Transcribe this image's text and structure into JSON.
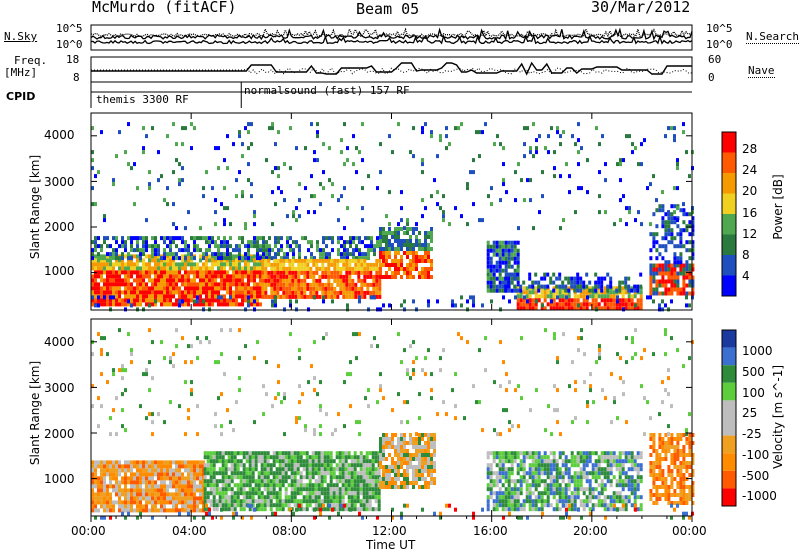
{
  "header": {
    "station": "McMurdo (fitACF)",
    "beam": "Beam 05",
    "date": "30/Mar/2012"
  },
  "noise_panel": {
    "left_label": "N.Sky",
    "right_label": "N.Search",
    "tick_top": "10^5",
    "tick_bottom": "10^0",
    "right_tick_top": "10^5",
    "right_tick_bottom": "10^0"
  },
  "freq_panel": {
    "left_label_line1": "Freq.",
    "left_label_line2": "[MHz]",
    "left_tick_top": "18",
    "left_tick_bottom": "8",
    "right_label": "Nave",
    "right_tick_top": "60",
    "right_tick_bottom": "0"
  },
  "cpid": {
    "label": "CPID",
    "modes": [
      {
        "name": "themis 3300 RF",
        "start_hour": 0
      },
      {
        "name": "normalsound (fast) 157 RF",
        "start_hour": 6
      }
    ]
  },
  "colors": {
    "power": [
      "#0000ff",
      "#1f4fbf",
      "#2a7a40",
      "#4fa84f",
      "#f0d020",
      "#f59a00",
      "#ff5a00",
      "#ff0000"
    ],
    "velocity": [
      "#ff0000",
      "#ff5a00",
      "#ff8c00",
      "#f0a020",
      "#bdbdbd",
      "#bdbdbd",
      "#5ccd3c",
      "#2e8b3a",
      "#3b6fd0",
      "#1a3aa0"
    ]
  },
  "chart_data": [
    {
      "type": "heatmap",
      "name": "power",
      "ylabel": "Slant Range [km]",
      "xlabel": "",
      "xlim": [
        0,
        24
      ],
      "ylim": [
        180,
        4500
      ],
      "yticks": [
        "1000",
        "2000",
        "3000",
        "4000"
      ],
      "colorbar": {
        "label": "Power [dB]",
        "ticks": [
          "4",
          "8",
          "12",
          "16",
          "20",
          "24",
          "28"
        ],
        "range": [
          0,
          32
        ]
      }
    },
    {
      "type": "heatmap",
      "name": "velocity",
      "ylabel": "Slant Range [km]",
      "xlabel": "Time UT",
      "xlim": [
        0,
        24
      ],
      "ylim": [
        180,
        4500
      ],
      "xticks": [
        "00:00",
        "04:00",
        "08:00",
        "12:00",
        "16:00",
        "20:00",
        "00:00"
      ],
      "yticks": [
        "1000",
        "2000",
        "3000",
        "4000"
      ],
      "colorbar": {
        "label": "Velocity [m s^-1]",
        "ticks": [
          "1000",
          "500",
          "100",
          "25",
          "-25",
          "-100",
          "-500",
          "-1000"
        ]
      }
    }
  ]
}
